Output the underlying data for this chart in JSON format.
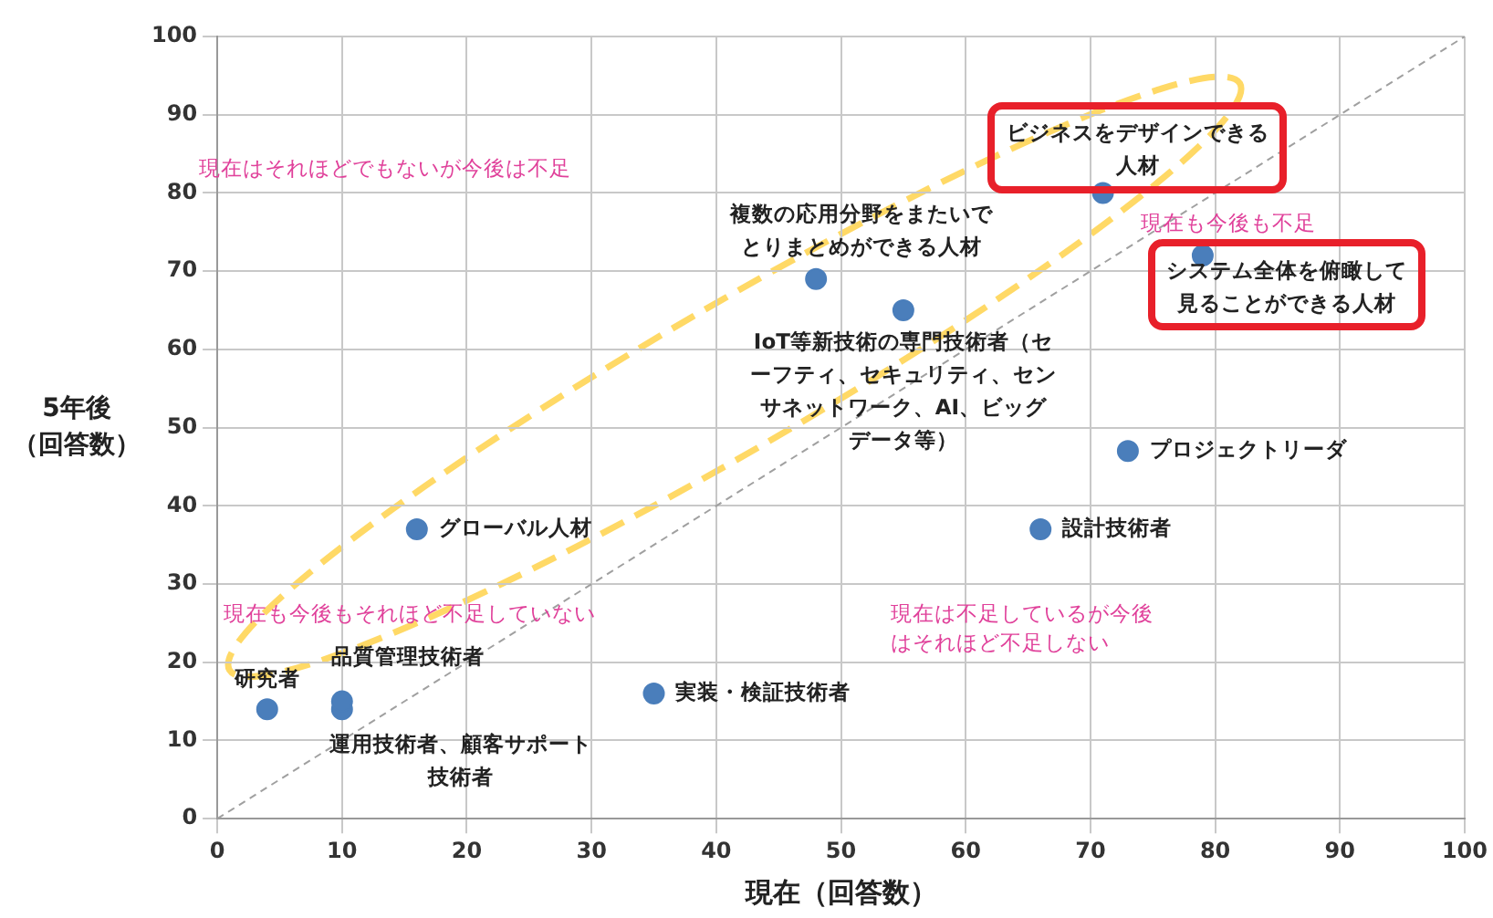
{
  "chart_data": {
    "type": "scatter",
    "xlabel": "現在（回答数）",
    "ylabel": "5年後（回答数）",
    "xlim": [
      0,
      100
    ],
    "ylim": [
      0,
      100
    ],
    "xticks": [
      0,
      10,
      20,
      30,
      40,
      50,
      60,
      70,
      80,
      90,
      100
    ],
    "yticks": [
      0,
      10,
      20,
      30,
      40,
      50,
      60,
      70,
      80,
      90,
      100
    ],
    "grid": true,
    "legend": false,
    "marker": "circle",
    "series": [
      {
        "name": "研究者",
        "color": "#4a7ebb",
        "x": [
          4
        ],
        "values": [
          14
        ]
      },
      {
        "name": "品質管理技術者",
        "color": "#4a7ebb",
        "x": [
          10
        ],
        "values": [
          15
        ]
      },
      {
        "name": "運用技術者、顧客サポート技術者",
        "color": "#4a7ebb",
        "x": [
          10
        ],
        "values": [
          14
        ]
      },
      {
        "name": "グローバル人材",
        "color": "#4a7ebb",
        "x": [
          16
        ],
        "values": [
          37
        ]
      },
      {
        "name": "実装・検証技術者",
        "color": "#4a7ebb",
        "x": [
          35
        ],
        "values": [
          16
        ]
      },
      {
        "name": "複数の応用分野をまたいでとりまとめができる人材",
        "color": "#4a7ebb",
        "x": [
          48
        ],
        "values": [
          69
        ]
      },
      {
        "name": "IoT等新技術の専門技術者（セーフティ、セキュリティ、センサネットワーク、AI、ビッグデータ等）",
        "color": "#4a7ebb",
        "x": [
          55
        ],
        "values": [
          65
        ]
      },
      {
        "name": "設計技術者",
        "color": "#4a7ebb",
        "x": [
          66
        ],
        "values": [
          37
        ]
      },
      {
        "name": "ビジネスをデザインできる人材",
        "color": "#4a7ebb",
        "x": [
          71
        ],
        "values": [
          80
        ]
      },
      {
        "name": "プロジェクトリーダ",
        "color": "#4a7ebb",
        "x": [
          73
        ],
        "values": [
          47
        ]
      },
      {
        "name": "システム全体を俯瞰して見ることができる人材",
        "color": "#4a7ebb",
        "x": [
          79
        ],
        "values": [
          72
        ]
      },
      {
        "type": "line",
        "color": "#a0a0a0",
        "x": [
          0,
          100
        ],
        "values": [
          0,
          100
        ],
        "line_style": "dashed",
        "marker": "none"
      }
    ],
    "annotations": [
      "現在はそれほどでもないが今後は不足",
      "現在も今後も不足",
      "現在も今後もそれほど不足していない",
      "現在は不足しているが今後はそれほど不足しない"
    ]
  }
}
